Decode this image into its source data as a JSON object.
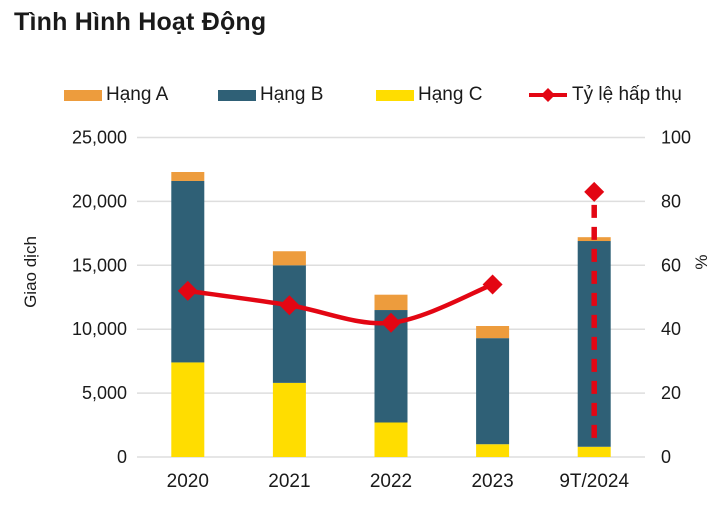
{
  "title": "Tình Hình Hoạt Động",
  "colors": {
    "grid": "#dedede",
    "text": "#1a1a1a",
    "orange": "#ed9c3d",
    "teal": "#2f6076",
    "yellow": "#ffdd00",
    "red": "#e30613"
  },
  "chart_data": {
    "type": "bar",
    "subtype": "stacked-bars-with-line-overlay",
    "title": "Tình Hình Hoạt Động",
    "categories": [
      "2020",
      "2021",
      "2022",
      "2023",
      "9T/2024"
    ],
    "series": [
      {
        "name": "Hạng A",
        "color": "#ed9c3d",
        "axis": "left",
        "values": [
          700,
          1100,
          1200,
          950,
          300
        ]
      },
      {
        "name": "Hạng B",
        "color": "#2f6076",
        "axis": "left",
        "values": [
          14200,
          9200,
          8800,
          8300,
          16100
        ]
      },
      {
        "name": "Hạng C",
        "color": "#ffdd00",
        "axis": "left",
        "values": [
          7400,
          5800,
          2700,
          1000,
          800
        ]
      }
    ],
    "stack_order_bottom_to_top": [
      "Hạng C",
      "Hạng B",
      "Hạng A"
    ],
    "stacked_totals": [
      22300,
      16100,
      12700,
      10250,
      17200
    ],
    "line_series": {
      "name": "Tỷ lệ hấp thụ",
      "color": "#e30613",
      "axis": "right",
      "values": [
        52,
        47.5,
        42,
        54,
        83
      ],
      "marker": "diamond",
      "last_point_dashed_projection": true
    },
    "left_axis": {
      "label": "Giao dịch",
      "min": 0,
      "max": 25000,
      "tick_step": 5000,
      "ticks": [
        "0",
        "5,000",
        "10,000",
        "15,000",
        "20,000",
        "25,000"
      ]
    },
    "right_axis": {
      "label": "%",
      "min": 0,
      "max": 100,
      "tick_step": 20,
      "ticks": [
        "0",
        "20",
        "40",
        "60",
        "80",
        "100"
      ]
    },
    "grid": true,
    "legend_position": "top"
  }
}
